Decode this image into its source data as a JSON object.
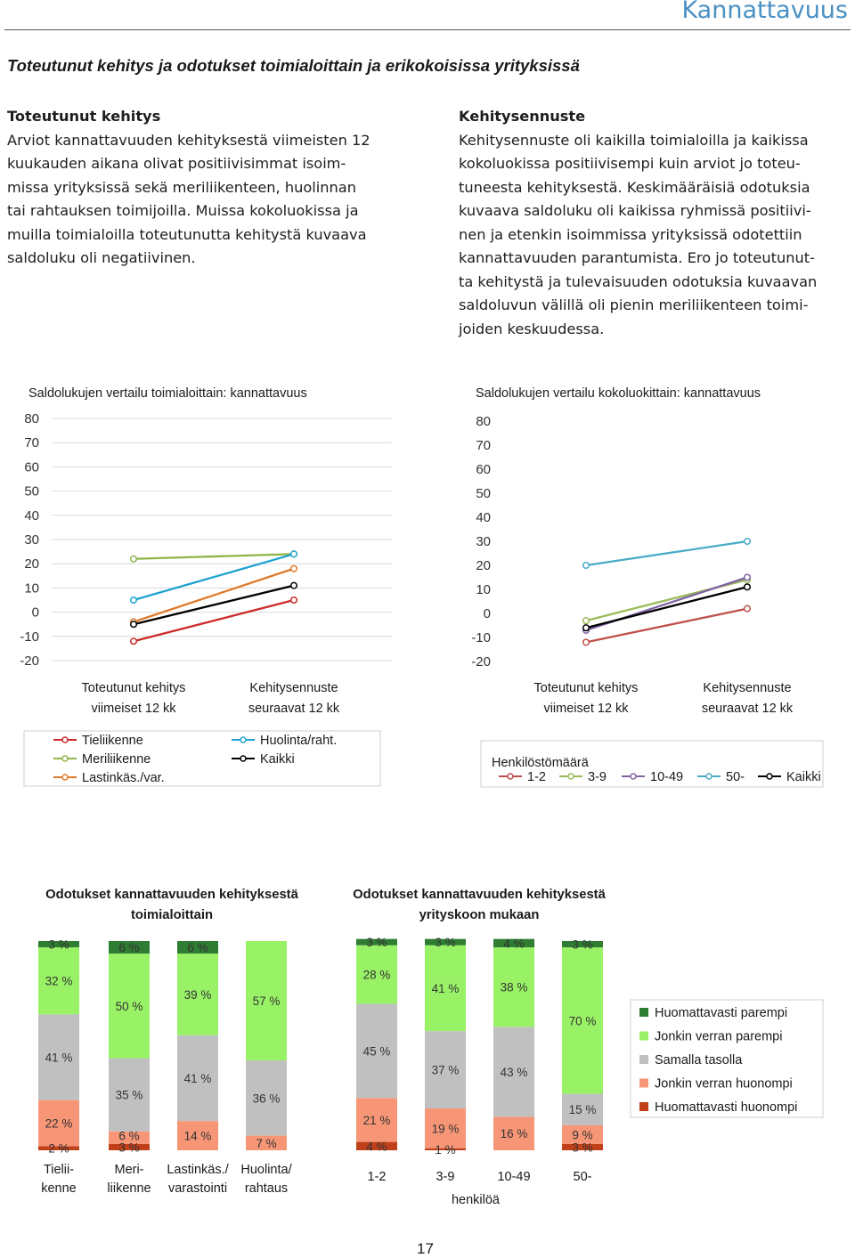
{
  "header": {
    "section": "Kannattavuus"
  },
  "title": "Toteutunut kehitys ja odotukset toimialoittain ja erikokoisissa yrityksissä",
  "left_text": {
    "heading": "Toteutunut kehitys",
    "lines": [
      "Arviot kannattavuuden kehityksestä viimeisten 12",
      "kuukauden aikana olivat positiivisimmat isoim-",
      "missa yrityksissä sekä meriliikenteen, huolinnan",
      "tai rahtauksen toimijoilla. Muissa kokoluokissa ja",
      "muilla toimialoilla toteutunutta kehitystä kuvaava",
      "saldoluku oli negatiivinen."
    ]
  },
  "right_text": {
    "heading": "Kehitysennuste",
    "lines": [
      "Kehitysennuste oli kaikilla toimialoilla ja kaikissa",
      "kokoluokissa positiivisempi kuin arviot jo toteu-",
      "tuneesta kehityksestä. Keskimääräisiä odotuksia",
      "kuvaava saldoluku oli kaikissa ryhmissä positiivi-",
      "nen ja etenkin isoimmissa yrityksissä odotettiin",
      "kannattavuuden parantumista. Ero jo toteutunut-",
      "ta kehitystä ja tulevaisuuden odotuksia kuvaavan",
      "saldoluvun välillä oli pienin meriliikenteen toimi-",
      "joiden keskuudessa."
    ]
  },
  "chart_data": [
    {
      "type": "line",
      "title": "Saldolukujen vertailu toimialoittain: kannattavuus",
      "categories": [
        [
          "Toteutunut kehitys",
          "viimeiset 12 kk"
        ],
        [
          "Kehitysennuste",
          "seuraavat 12 kk"
        ]
      ],
      "ylim": [
        -20,
        80
      ],
      "yticks": [
        "80",
        "70",
        "60",
        "50",
        "40",
        "30",
        "20",
        "10",
        "0",
        "-10",
        "-20"
      ],
      "grid": true,
      "legend_position": "bottom",
      "series": [
        {
          "name": "Tieliikenne",
          "color": "#cc2a2a",
          "values": [
            -12,
            5
          ]
        },
        {
          "name": "Meriliikenne",
          "color": "#8fb64a",
          "values": [
            22,
            24
          ]
        },
        {
          "name": "Lastinkäs./var.",
          "color": "#e07a2a",
          "values": [
            -4,
            18
          ]
        },
        {
          "name": "Huolinta/raht.",
          "color": "#1ea3d0",
          "values": [
            5,
            24
          ]
        },
        {
          "name": "Kaikki",
          "color": "#000000",
          "values": [
            -5,
            11
          ]
        }
      ]
    },
    {
      "type": "line",
      "title": "Saldolukujen vertailu kokoluokittain: kannattavuus",
      "categories": [
        [
          "Toteutunut kehitys",
          "viimeiset 12 kk"
        ],
        [
          "Kehitysennuste",
          "seuraavat 12 kk"
        ]
      ],
      "ylim": [
        -20,
        80
      ],
      "yticks": [
        "80",
        "70",
        "60",
        "50",
        "40",
        "30",
        "20",
        "10",
        "0",
        "-10",
        "-20"
      ],
      "grid": false,
      "legend_title": "Henkilöstömäärä",
      "legend_position": "bottom",
      "series": [
        {
          "name": "1-2",
          "color": "#c0504d",
          "values": [
            -12,
            2
          ]
        },
        {
          "name": "3-9",
          "color": "#9bbb59",
          "values": [
            -3,
            14
          ]
        },
        {
          "name": "10-49",
          "color": "#8064a2",
          "values": [
            -7,
            15
          ]
        },
        {
          "name": "50-",
          "color": "#4bacc6",
          "values": [
            20,
            30
          ]
        },
        {
          "name": "Kaikki",
          "color": "#000000",
          "values": [
            -6,
            11
          ]
        }
      ]
    },
    {
      "type": "bar",
      "stacked": true,
      "title": [
        "Odotukset kannattavuuden kehityksestä",
        "toimialoittain"
      ],
      "categories": [
        [
          "Tielii-",
          "kenne"
        ],
        [
          "Meri-",
          "liikenne"
        ],
        [
          "Lastinkäs./",
          "varastointi"
        ],
        [
          "Huolinta/",
          "rahtaus"
        ]
      ],
      "ylim": [
        0,
        100
      ],
      "series": [
        {
          "name": "Huomattavasti huonompi",
          "color": "#c0401a",
          "values": [
            2,
            3,
            0,
            0
          ],
          "labels": [
            "2 %",
            "3 %",
            "",
            ""
          ]
        },
        {
          "name": "Jonkin verran huonompi",
          "color": "#f79677",
          "values": [
            22,
            6,
            14,
            7
          ],
          "labels": [
            "22 %",
            "6 %",
            "14 %",
            "7 %"
          ]
        },
        {
          "name": "Samalla tasolla",
          "color": "#c0c0c0",
          "values": [
            41,
            35,
            41,
            36
          ],
          "labels": [
            "41 %",
            "35 %",
            "41 %",
            "36 %"
          ]
        },
        {
          "name": "Jonkin verran parempi",
          "color": "#99f266",
          "values": [
            32,
            50,
            39,
            57
          ],
          "labels": [
            "32 %",
            "50 %",
            "39 %",
            "57 %"
          ]
        },
        {
          "name": "Huomattavasti parempi",
          "color": "#2e7d32",
          "values": [
            3,
            6,
            6,
            0
          ],
          "labels": [
            "3 %",
            "6 %",
            "6 %",
            ""
          ]
        }
      ]
    },
    {
      "type": "bar",
      "stacked": true,
      "title": [
        "Odotukset kannattavuuden kehityksestä",
        "yrityskoon mukaan"
      ],
      "categories": [
        "1-2",
        "3-9",
        "10-49",
        "50-"
      ],
      "xlabel": "henkilöä",
      "ylim": [
        0,
        100
      ],
      "legend_position": "right",
      "series": [
        {
          "name": "Huomattavasti huonompi",
          "color": "#c0401a",
          "values": [
            4,
            1,
            0,
            3
          ],
          "labels": [
            "4 %",
            "1 %",
            "",
            "3 %"
          ]
        },
        {
          "name": "Jonkin verran huonompi",
          "color": "#f79677",
          "values": [
            21,
            19,
            16,
            9
          ],
          "labels": [
            "21 %",
            "19 %",
            "16 %",
            "9 %"
          ]
        },
        {
          "name": "Samalla tasolla",
          "color": "#c0c0c0",
          "values": [
            45,
            37,
            43,
            15
          ],
          "labels": [
            "45 %",
            "37 %",
            "43 %",
            "15 %"
          ]
        },
        {
          "name": "Jonkin verran parempi",
          "color": "#99f266",
          "values": [
            28,
            41,
            38,
            70
          ],
          "labels": [
            "28 %",
            "41 %",
            "38 %",
            "70 %"
          ]
        },
        {
          "name": "Huomattavasti parempi",
          "color": "#2e7d32",
          "values": [
            3,
            3,
            4,
            3
          ],
          "labels": [
            "3 %",
            "3 %",
            "4 %",
            "3 %"
          ]
        }
      ]
    }
  ],
  "page_number": "17"
}
